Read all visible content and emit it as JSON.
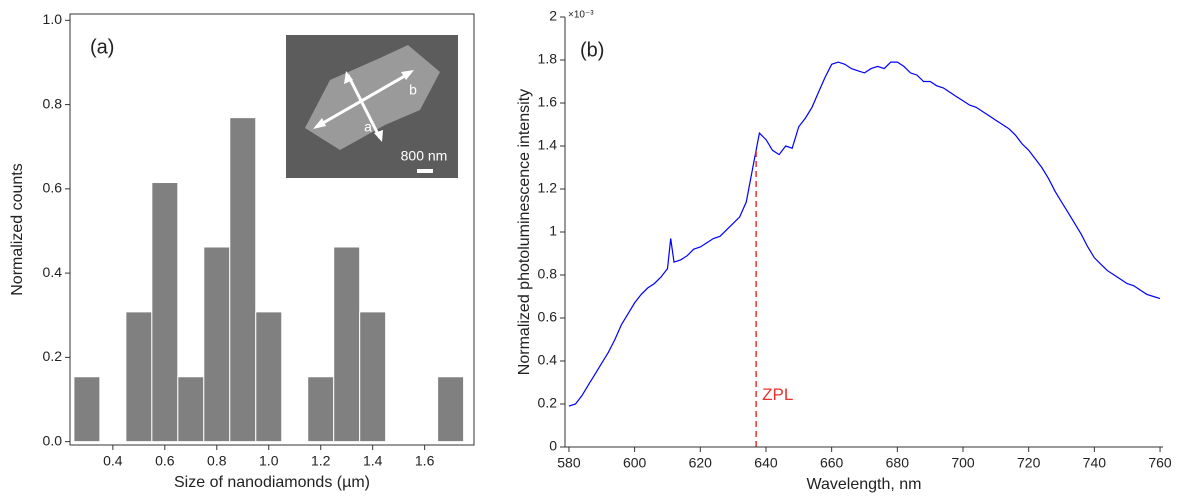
{
  "chart_data": [
    {
      "type": "histogram",
      "panel_label": "(a)",
      "x_label": "Size of nanodiamonds (µm)",
      "y_label": "Normalized counts",
      "bins": [
        0.25,
        0.35,
        0.45,
        0.55,
        0.65,
        0.75,
        0.85,
        0.95,
        1.05,
        1.15,
        1.25,
        1.35,
        1.45,
        1.55,
        1.65,
        1.75
      ],
      "values": [
        0.154,
        0,
        0.308,
        0.615,
        0.154,
        0.462,
        0.769,
        0.308,
        0,
        0.154,
        0.462,
        0.308,
        0,
        0,
        0.154
      ],
      "color": "#808080",
      "xlim": [
        0.235,
        1.79
      ],
      "xticks": [
        0.4,
        0.6,
        0.8,
        {
          "value": 1,
          "label": "1.0"
        },
        1.2,
        1.4,
        1.6
      ],
      "ylim": [
        -0.008,
        1.015
      ],
      "yticks": [
        {
          "value": 0,
          "label": "0.0"
        },
        0.2,
        0.4,
        0.6,
        0.8,
        {
          "value": 1,
          "label": "1.0"
        }
      ],
      "inset": {
        "arrow_labels": [
          "a",
          "b"
        ],
        "scale_bar": "800 nm"
      }
    },
    {
      "type": "line",
      "panel_label": "(b)",
      "x_label": "Wavelength, nm",
      "y_label": "Normalized photoluminescence intensity",
      "y_multiplier": "×10⁻³",
      "x": [
        580,
        582,
        584,
        586,
        588,
        590,
        592,
        594,
        596,
        598,
        600,
        602,
        604,
        606,
        608,
        610,
        611,
        612,
        614,
        616,
        618,
        620,
        622,
        624,
        626,
        628,
        630,
        632,
        634,
        636,
        638,
        640,
        642,
        644,
        646,
        648,
        650,
        652,
        654,
        656,
        658,
        660,
        662,
        664,
        666,
        668,
        670,
        672,
        674,
        676,
        678,
        680,
        682,
        684,
        686,
        688,
        690,
        692,
        694,
        696,
        698,
        700,
        702,
        704,
        706,
        708,
        710,
        712,
        714,
        716,
        718,
        720,
        722,
        724,
        726,
        728,
        730,
        732,
        734,
        736,
        738,
        740,
        742,
        744,
        746,
        748,
        750,
        752,
        754,
        756,
        758,
        760
      ],
      "values": [
        0.19,
        0.2,
        0.24,
        0.29,
        0.34,
        0.39,
        0.44,
        0.5,
        0.57,
        0.62,
        0.67,
        0.71,
        0.74,
        0.76,
        0.79,
        0.83,
        0.97,
        0.86,
        0.87,
        0.89,
        0.92,
        0.93,
        0.95,
        0.97,
        0.98,
        1.01,
        1.04,
        1.07,
        1.14,
        1.3,
        1.46,
        1.43,
        1.38,
        1.36,
        1.4,
        1.39,
        1.49,
        1.53,
        1.58,
        1.65,
        1.72,
        1.78,
        1.79,
        1.78,
        1.76,
        1.75,
        1.74,
        1.76,
        1.77,
        1.76,
        1.79,
        1.79,
        1.77,
        1.74,
        1.73,
        1.7,
        1.7,
        1.68,
        1.67,
        1.65,
        1.63,
        1.61,
        1.59,
        1.58,
        1.56,
        1.54,
        1.52,
        1.5,
        1.48,
        1.45,
        1.41,
        1.38,
        1.34,
        1.3,
        1.25,
        1.19,
        1.14,
        1.09,
        1.04,
        0.99,
        0.93,
        0.88,
        0.85,
        0.82,
        0.8,
        0.78,
        0.76,
        0.75,
        0.73,
        0.71,
        0.7,
        0.69
      ],
      "color": "#0000ff",
      "xlim": [
        578.8,
        760.9
      ],
      "xticks": [
        580,
        600,
        620,
        640,
        660,
        680,
        700,
        720,
        740,
        760
      ],
      "ylim": [
        0,
        2
      ],
      "yticks": [
        0,
        0.2,
        0.4,
        0.6,
        0.8,
        1,
        1.2,
        1.4,
        1.6,
        1.8,
        2
      ],
      "annotations": [
        {
          "x": 637,
          "text": "ZPL",
          "color": "#e8322d"
        }
      ]
    }
  ]
}
